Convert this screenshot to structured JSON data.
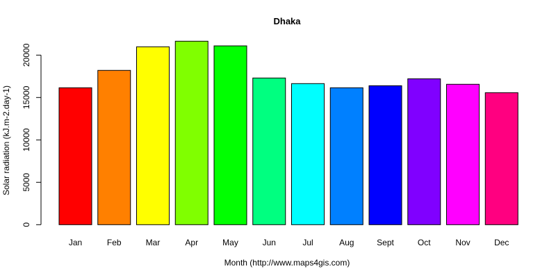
{
  "chart_data": {
    "type": "bar",
    "title": "Dhaka",
    "xlabel": "Month (http://www.maps4gis.com)",
    "ylabel": "Solar radiation (kJ.m-2.day-1)",
    "categories": [
      "Jan",
      "Feb",
      "Mar",
      "Apr",
      "May",
      "Jun",
      "Jul",
      "Aug",
      "Sept",
      "Oct",
      "Nov",
      "Dec"
    ],
    "values": [
      16150,
      18200,
      20980,
      21640,
      21090,
      17300,
      16640,
      16150,
      16390,
      17210,
      16560,
      15570
    ],
    "colors": [
      "#FF0000",
      "#FF8000",
      "#FFFF00",
      "#80FF00",
      "#00FF00",
      "#00FF80",
      "#00FFFF",
      "#0080FF",
      "#0000FF",
      "#8000FF",
      "#FF00FF",
      "#FF0080"
    ],
    "yticks": [
      0,
      5000,
      10000,
      15000,
      20000
    ],
    "ylim": [
      0,
      22000
    ],
    "grid": false,
    "legend": null
  }
}
